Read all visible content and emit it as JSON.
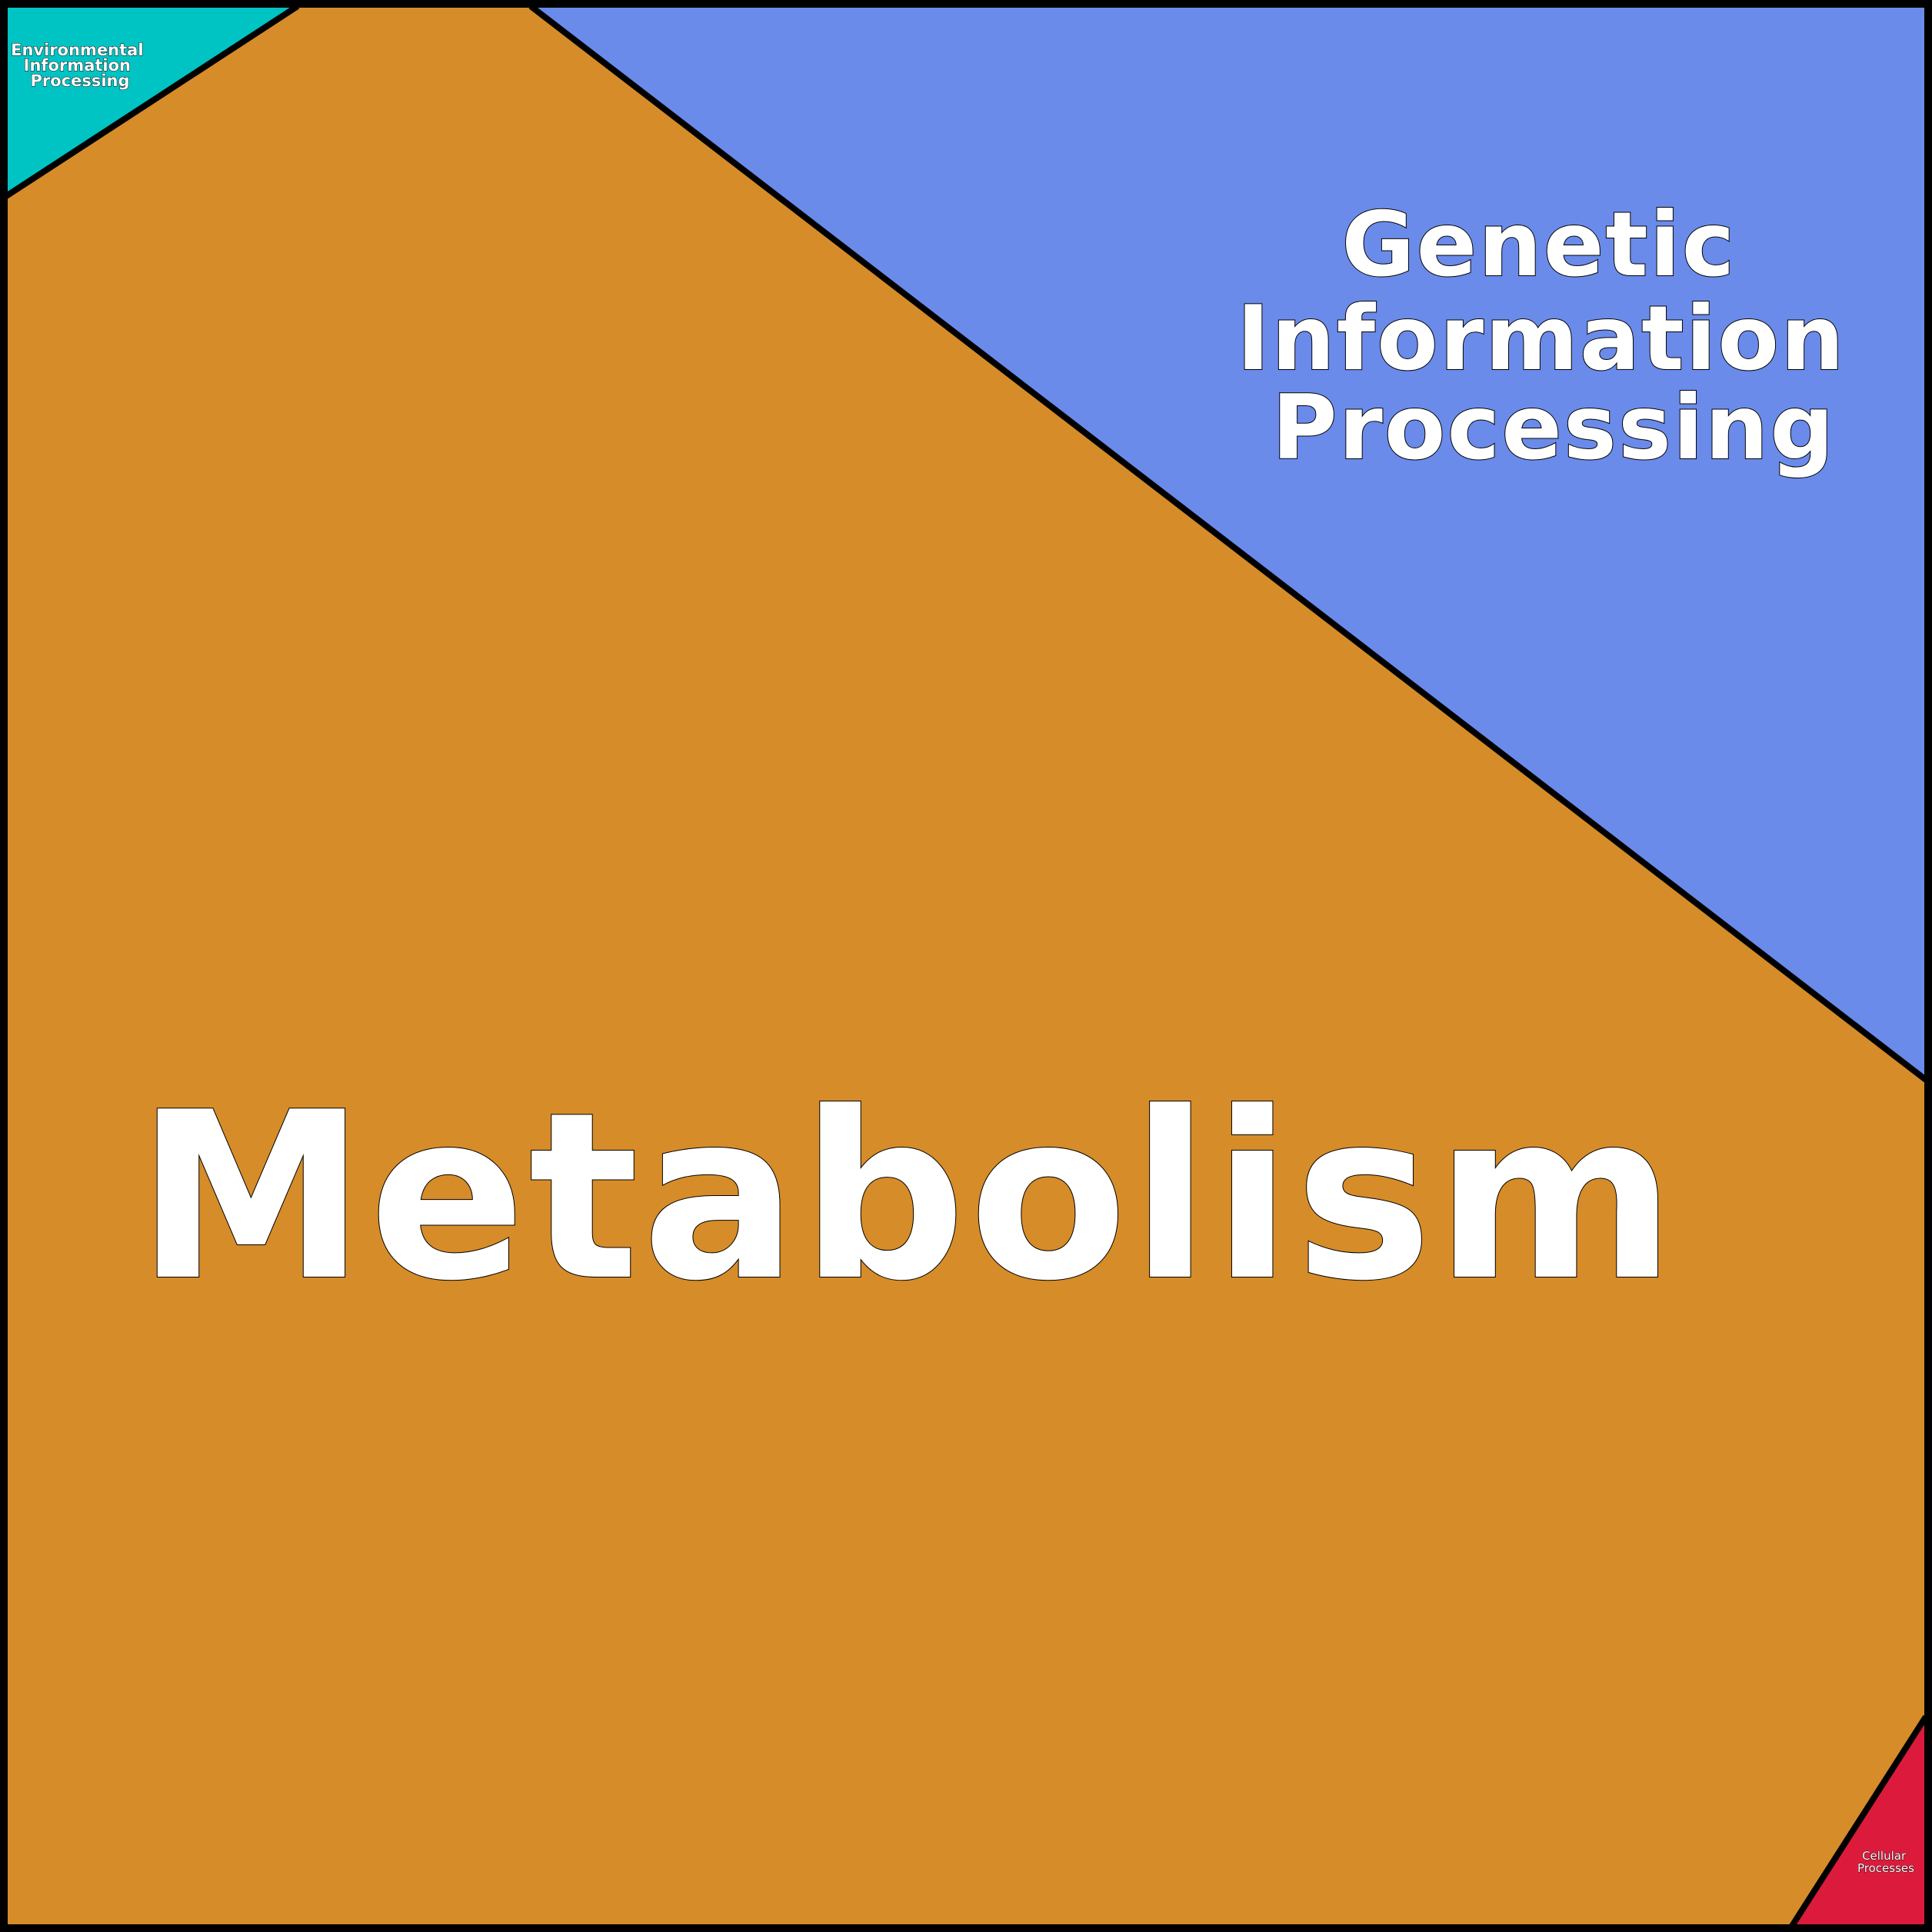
{
  "diagram": {
    "regions": [
      {
        "key": "metabolism",
        "label_lines": [
          "Metabolism"
        ],
        "color": "#D68C29"
      },
      {
        "key": "genetic",
        "label_lines": [
          "Genetic",
          "Information",
          "Processing"
        ],
        "color": "#6A8BEA"
      },
      {
        "key": "environmental",
        "label_lines": [
          "Environmental",
          "Information",
          "Processing"
        ],
        "color": "#00C4C4"
      },
      {
        "key": "cellular",
        "label_lines": [
          "Cellular",
          "Processes"
        ],
        "color": "#DC1A3C"
      }
    ],
    "border_color": "#000000"
  }
}
